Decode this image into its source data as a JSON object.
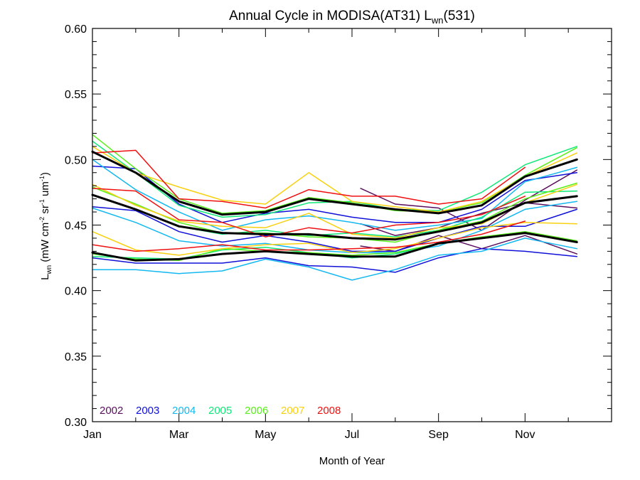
{
  "chart_data": {
    "type": "line",
    "title": {
      "main": "Annual Cycle in MODISA(AT31) L",
      "sub": "wn",
      "suffix": "(531)"
    },
    "xlabel": "Month of Year",
    "ylabel": {
      "base": "L",
      "sub": "wn",
      "open": " (mW cm",
      "sup1": "-2",
      "mid1": " sr",
      "sup2": "-1",
      "mid2": " um",
      "sup3": "-1",
      "close": ")"
    },
    "x_ticks": [
      {
        "x": 1,
        "label": "Jan"
      },
      {
        "x": 3,
        "label": "Mar"
      },
      {
        "x": 5,
        "label": "May"
      },
      {
        "x": 7,
        "label": "Jul"
      },
      {
        "x": 9,
        "label": "Sep"
      },
      {
        "x": 11,
        "label": "Nov"
      }
    ],
    "x_minor_ticks": [
      2,
      4,
      6,
      8,
      10,
      12
    ],
    "xlim": [
      1,
      13
    ],
    "ylim": [
      0.3,
      0.6
    ],
    "y_ticks": [
      "0.30",
      "0.35",
      "0.40",
      "0.45",
      "0.50",
      "0.55",
      "0.60"
    ],
    "legend": {
      "placement": "bottom-left",
      "entries": [
        {
          "name": "2002",
          "color": "#5a0e5e"
        },
        {
          "name": "2003",
          "color": "#1010d8"
        },
        {
          "name": "2004",
          "color": "#14b8f0"
        },
        {
          "name": "2005",
          "color": "#10e878"
        },
        {
          "name": "2006",
          "color": "#58f018"
        },
        {
          "name": "2007",
          "color": "#f8d010"
        },
        {
          "name": "2008",
          "color": "#f01010"
        }
      ]
    },
    "series": [
      {
        "year": "2002",
        "color": "#5a0e5e",
        "width": 1.5,
        "x": [
          7.2,
          8,
          9,
          10,
          11,
          12.2
        ],
        "y": [
          0.478,
          0.466,
          0.463,
          0.446,
          0.469,
          0.492
        ]
      },
      {
        "year": "2002",
        "color": "#5a0e5e",
        "width": 1.5,
        "x": [
          7.2,
          8,
          9,
          10,
          11,
          12.2
        ],
        "y": [
          0.451,
          0.442,
          0.448,
          0.459,
          0.467,
          0.463
        ]
      },
      {
        "year": "2002",
        "color": "#5a0e5e",
        "width": 1.5,
        "x": [
          7.2,
          8,
          9,
          10,
          11,
          12.2
        ],
        "y": [
          0.434,
          0.43,
          0.442,
          0.432,
          0.442,
          0.428
        ]
      },
      {
        "year": "2003",
        "color": "#1010d8",
        "width": 1.5,
        "x": [
          1,
          2,
          3,
          4,
          5,
          6,
          7,
          8,
          9,
          10,
          11,
          12.2
        ],
        "y": [
          0.495,
          0.493,
          0.466,
          0.452,
          0.459,
          0.462,
          0.456,
          0.452,
          0.452,
          0.462,
          0.484,
          0.49
        ]
      },
      {
        "year": "2003",
        "color": "#1010d8",
        "width": 1.5,
        "x": [
          1,
          2,
          3,
          4,
          5,
          6,
          7,
          8,
          9,
          10,
          11,
          12.2
        ],
        "y": [
          0.464,
          0.461,
          0.445,
          0.437,
          0.442,
          0.437,
          0.43,
          0.43,
          0.44,
          0.449,
          0.449,
          0.462
        ]
      },
      {
        "year": "2003",
        "color": "#1010d8",
        "width": 1.5,
        "x": [
          1,
          2,
          3,
          4,
          5,
          6,
          7,
          8,
          9,
          10,
          11,
          12.2
        ],
        "y": [
          0.425,
          0.421,
          0.421,
          0.421,
          0.425,
          0.419,
          0.418,
          0.414,
          0.425,
          0.432,
          0.43,
          0.426
        ]
      },
      {
        "year": "2004",
        "color": "#14b8f0",
        "width": 1.5,
        "x": [
          1,
          2,
          3,
          4,
          5,
          6,
          7,
          8,
          9,
          10,
          11,
          12.2
        ],
        "y": [
          0.5,
          0.477,
          0.46,
          0.446,
          0.454,
          0.457,
          0.452,
          0.446,
          0.45,
          0.455,
          0.483,
          0.494
        ]
      },
      {
        "year": "2004",
        "color": "#14b8f0",
        "width": 1.5,
        "x": [
          1,
          2,
          3,
          4,
          5,
          6,
          7,
          8,
          9,
          10,
          11,
          12.2
        ],
        "y": [
          0.463,
          0.452,
          0.438,
          0.434,
          0.436,
          0.431,
          0.429,
          0.429,
          0.434,
          0.446,
          0.462,
          0.468
        ]
      },
      {
        "year": "2004",
        "color": "#14b8f0",
        "width": 1.5,
        "x": [
          1,
          2,
          3,
          4,
          5,
          6,
          7,
          8,
          9,
          10,
          11,
          12.2
        ],
        "y": [
          0.416,
          0.416,
          0.413,
          0.415,
          0.424,
          0.418,
          0.408,
          0.416,
          0.427,
          0.43,
          0.44,
          0.432
        ]
      },
      {
        "year": "2005",
        "color": "#10e878",
        "width": 1.5,
        "x": [
          1,
          2,
          3,
          4,
          5,
          6,
          7,
          8,
          9,
          10,
          11,
          12.2
        ],
        "y": [
          0.514,
          0.49,
          0.465,
          0.456,
          0.458,
          0.467,
          0.468,
          0.462,
          0.461,
          0.475,
          0.496,
          0.51
        ]
      },
      {
        "year": "2005",
        "color": "#10e878",
        "width": 1.5,
        "x": [
          1,
          2,
          3,
          4,
          5,
          6,
          7,
          8,
          9,
          10,
          11,
          12.2
        ],
        "y": [
          0.473,
          0.462,
          0.449,
          0.443,
          0.446,
          0.442,
          0.444,
          0.441,
          0.446,
          0.456,
          0.475,
          0.476
        ]
      },
      {
        "year": "2005",
        "color": "#10e878",
        "width": 1.5,
        "x": [
          1,
          2,
          3,
          4,
          5,
          6,
          7,
          8,
          9,
          10,
          11,
          12.2
        ],
        "y": [
          0.426,
          0.425,
          0.424,
          0.431,
          0.433,
          0.429,
          0.425,
          0.428,
          0.436,
          0.44,
          0.444,
          0.437
        ]
      },
      {
        "year": "2006",
        "color": "#58f018",
        "width": 1.5,
        "x": [
          1,
          2,
          3,
          4,
          5,
          6,
          7,
          8,
          9,
          10,
          11,
          12.2
        ],
        "y": [
          0.519,
          0.493,
          0.47,
          0.459,
          0.461,
          0.471,
          0.467,
          0.461,
          0.46,
          0.467,
          0.488,
          0.509
        ]
      },
      {
        "year": "2006",
        "color": "#58f018",
        "width": 1.5,
        "x": [
          1,
          2,
          3,
          4,
          5,
          6,
          7,
          8,
          9,
          10,
          11,
          12.2
        ],
        "y": [
          0.479,
          0.466,
          0.452,
          0.444,
          0.444,
          0.441,
          0.44,
          0.437,
          0.446,
          0.453,
          0.47,
          0.482
        ]
      },
      {
        "year": "2006",
        "color": "#58f018",
        "width": 1.5,
        "x": [
          1,
          2,
          3,
          4,
          5,
          6,
          7,
          8,
          9,
          10,
          11,
          12.2
        ],
        "y": [
          0.428,
          0.424,
          0.423,
          0.432,
          0.43,
          0.429,
          0.427,
          0.429,
          0.436,
          0.441,
          0.445,
          0.438
        ]
      },
      {
        "year": "2007",
        "color": "#f8d010",
        "width": 1.5,
        "x": [
          1,
          2,
          3,
          4,
          5,
          6,
          7,
          8,
          9,
          10,
          11,
          12.2
        ],
        "y": [
          0.51,
          0.49,
          0.479,
          0.469,
          0.466,
          0.49,
          0.468,
          0.464,
          0.46,
          0.468,
          0.487,
          0.505
        ]
      },
      {
        "year": "2007",
        "color": "#f8d010",
        "width": 1.5,
        "x": [
          1,
          2,
          3,
          4,
          5,
          6,
          7,
          8,
          9,
          10,
          11,
          12.2
        ],
        "y": [
          0.481,
          0.465,
          0.453,
          0.449,
          0.448,
          0.459,
          0.443,
          0.44,
          0.448,
          0.451,
          0.467,
          0.481
        ]
      },
      {
        "year": "2007",
        "color": "#f8d010",
        "width": 1.5,
        "x": [
          1,
          2,
          3,
          4,
          5,
          6,
          7,
          8,
          9,
          10,
          11,
          12.2
        ],
        "y": [
          0.445,
          0.431,
          0.427,
          0.432,
          0.435,
          0.436,
          0.429,
          0.432,
          0.44,
          0.448,
          0.452,
          0.451
        ]
      },
      {
        "year": "2008",
        "color": "#f01010",
        "width": 1.5,
        "x": [
          1,
          2,
          3,
          4,
          5,
          6,
          7,
          8,
          9,
          10,
          11
        ],
        "y": [
          0.505,
          0.507,
          0.47,
          0.468,
          0.463,
          0.477,
          0.472,
          0.472,
          0.466,
          0.47,
          0.494
        ]
      },
      {
        "year": "2008",
        "color": "#f01010",
        "width": 1.5,
        "x": [
          1,
          2,
          3,
          4,
          5,
          6,
          7,
          8,
          9,
          10,
          11
        ],
        "y": [
          0.478,
          0.476,
          0.454,
          0.452,
          0.441,
          0.448,
          0.444,
          0.45,
          0.452,
          0.458,
          0.472
        ]
      },
      {
        "year": "2008",
        "color": "#f01010",
        "width": 1.5,
        "x": [
          1,
          2,
          3,
          4,
          5,
          6,
          7,
          8,
          9,
          10,
          11
        ],
        "y": [
          0.435,
          0.43,
          0.432,
          0.435,
          0.431,
          0.431,
          0.432,
          0.433,
          0.437,
          0.443,
          0.453
        ]
      },
      {
        "year": "mean",
        "color": "#000000",
        "width": 3,
        "x": [
          1,
          2,
          3,
          4,
          5,
          6,
          7,
          8,
          9,
          10,
          11,
          12.2
        ],
        "y": [
          0.506,
          0.49,
          0.468,
          0.458,
          0.46,
          0.47,
          0.466,
          0.462,
          0.459,
          0.465,
          0.487,
          0.5
        ]
      },
      {
        "year": "mean",
        "color": "#000000",
        "width": 3,
        "x": [
          1,
          2,
          3,
          4,
          5,
          6,
          7,
          8,
          9,
          10,
          11,
          12.2
        ],
        "y": [
          0.473,
          0.462,
          0.449,
          0.444,
          0.443,
          0.443,
          0.44,
          0.439,
          0.445,
          0.452,
          0.467,
          0.472
        ]
      },
      {
        "year": "mean",
        "color": "#000000",
        "width": 3,
        "x": [
          1,
          2,
          3,
          4,
          5,
          6,
          7,
          8,
          9,
          10,
          11,
          12.2
        ],
        "y": [
          0.429,
          0.423,
          0.424,
          0.428,
          0.43,
          0.428,
          0.426,
          0.426,
          0.436,
          0.44,
          0.444,
          0.437
        ]
      }
    ]
  }
}
